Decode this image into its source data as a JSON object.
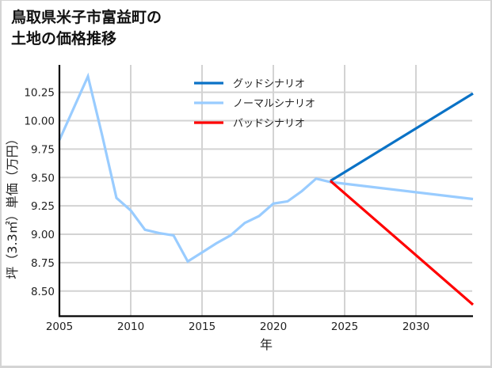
{
  "title": {
    "line1": "鳥取県米子市富益町の",
    "line2": "土地の価格推移"
  },
  "colors": {
    "good": "#0a72c6",
    "normal": "#99ccff",
    "bad": "#ff0000",
    "grid": "#d3d3d3",
    "axis": "#000000"
  },
  "chart_data": {
    "type": "line",
    "title": "鳥取県米子市富益町の土地の価格推移",
    "xlabel": "年",
    "ylabel": "坪（3.3㎡）単価（万円）",
    "xlim": [
      2005,
      2034
    ],
    "ylim": [
      8.28,
      10.5
    ],
    "grid": true,
    "legend_position": "upper center",
    "x_ticks": [
      2005,
      2010,
      2015,
      2020,
      2025,
      2030
    ],
    "y_ticks": [
      8.5,
      8.75,
      9.0,
      9.25,
      9.5,
      9.75,
      10.0,
      10.25
    ],
    "y_tick_labels": [
      "8.50",
      "8.75",
      "9.00",
      "9.25",
      "9.50",
      "9.75",
      "10.00",
      "10.25"
    ],
    "series": [
      {
        "name": "グッドシナリオ",
        "color": "#0a72c6",
        "x": [
          2024,
          2034
        ],
        "values": [
          9.47,
          10.24
        ]
      },
      {
        "name": "ノーマルシナリオ",
        "color": "#99ccff",
        "x": [
          2005,
          2007,
          2008,
          2009,
          2010,
          2011,
          2012,
          2013,
          2014,
          2015,
          2016,
          2017,
          2018,
          2019,
          2020,
          2021,
          2022,
          2023,
          2024,
          2034
        ],
        "values": [
          9.83,
          10.39,
          9.87,
          9.32,
          9.21,
          9.04,
          9.01,
          8.99,
          8.76,
          8.84,
          8.92,
          8.99,
          9.1,
          9.16,
          9.27,
          9.29,
          9.38,
          9.49,
          9.46,
          9.31
        ]
      },
      {
        "name": "バッドシナリオ",
        "color": "#ff0000",
        "x": [
          2024,
          2034
        ],
        "values": [
          9.47,
          8.38
        ]
      }
    ]
  }
}
